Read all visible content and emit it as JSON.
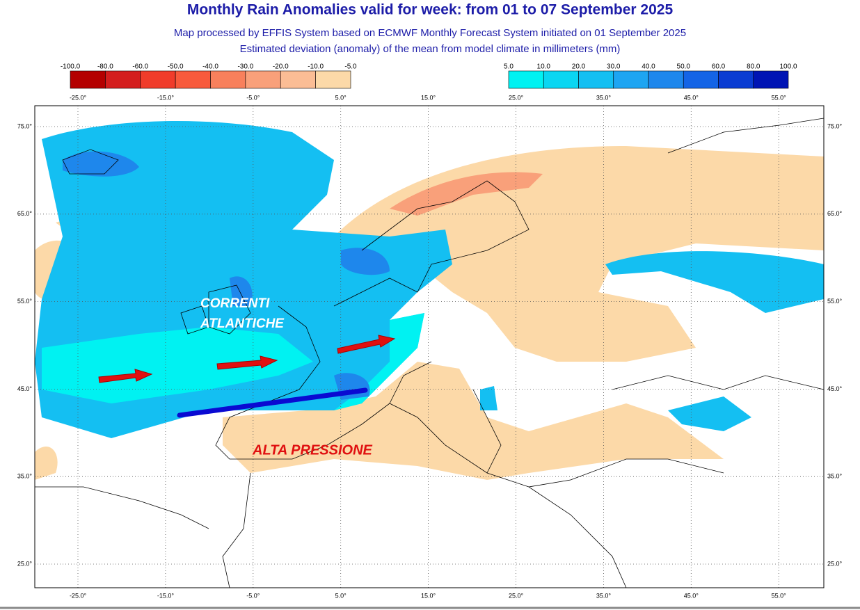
{
  "header": {
    "title": "Monthly Rain Anomalies valid for week: from 01 to 07 September 2025",
    "subtitle": "Map processed by EFFIS System based on ECMWF Monthly Forecast System initiated on 01 September 2025",
    "description": "Estimated deviation (anomaly) of the mean from model climate in millimeters (mm)"
  },
  "legend_negative": {
    "labels": [
      "-100.0",
      "-80.0",
      "-60.0",
      "-50.0",
      "-40.0",
      "-30.0",
      "-20.0",
      "-10.0",
      "-5.0"
    ],
    "colors": [
      "#b40000",
      "#d41e1e",
      "#f03c2b",
      "#f85a3c",
      "#f8805c",
      "#f9a07a",
      "#fbbd95",
      "#fcd9a8"
    ]
  },
  "legend_positive": {
    "labels": [
      "5.0",
      "10.0",
      "20.0",
      "30.0",
      "40.0",
      "50.0",
      "60.0",
      "80.0",
      "100.0"
    ],
    "colors": [
      "#00f2f2",
      "#0ad6f2",
      "#14bff2",
      "#1ea5f2",
      "#1e87ec",
      "#1464e6",
      "#0a3cd2",
      "#0014b4"
    ]
  },
  "map": {
    "longitudes": [
      "-25.0°",
      "-15.0°",
      "-5.0°",
      "5.0°",
      "15.0°",
      "25.0°",
      "35.0°",
      "45.0°",
      "55.0°"
    ],
    "latitudes": [
      "75.0°",
      "65.0°",
      "55.0°",
      "45.0°",
      "35.0°",
      "25.0°"
    ],
    "annotation_atlantic": [
      "CORRENTI",
      "ATLANTICHE"
    ],
    "annotation_pressure": "ALTA PRESSIONE"
  }
}
